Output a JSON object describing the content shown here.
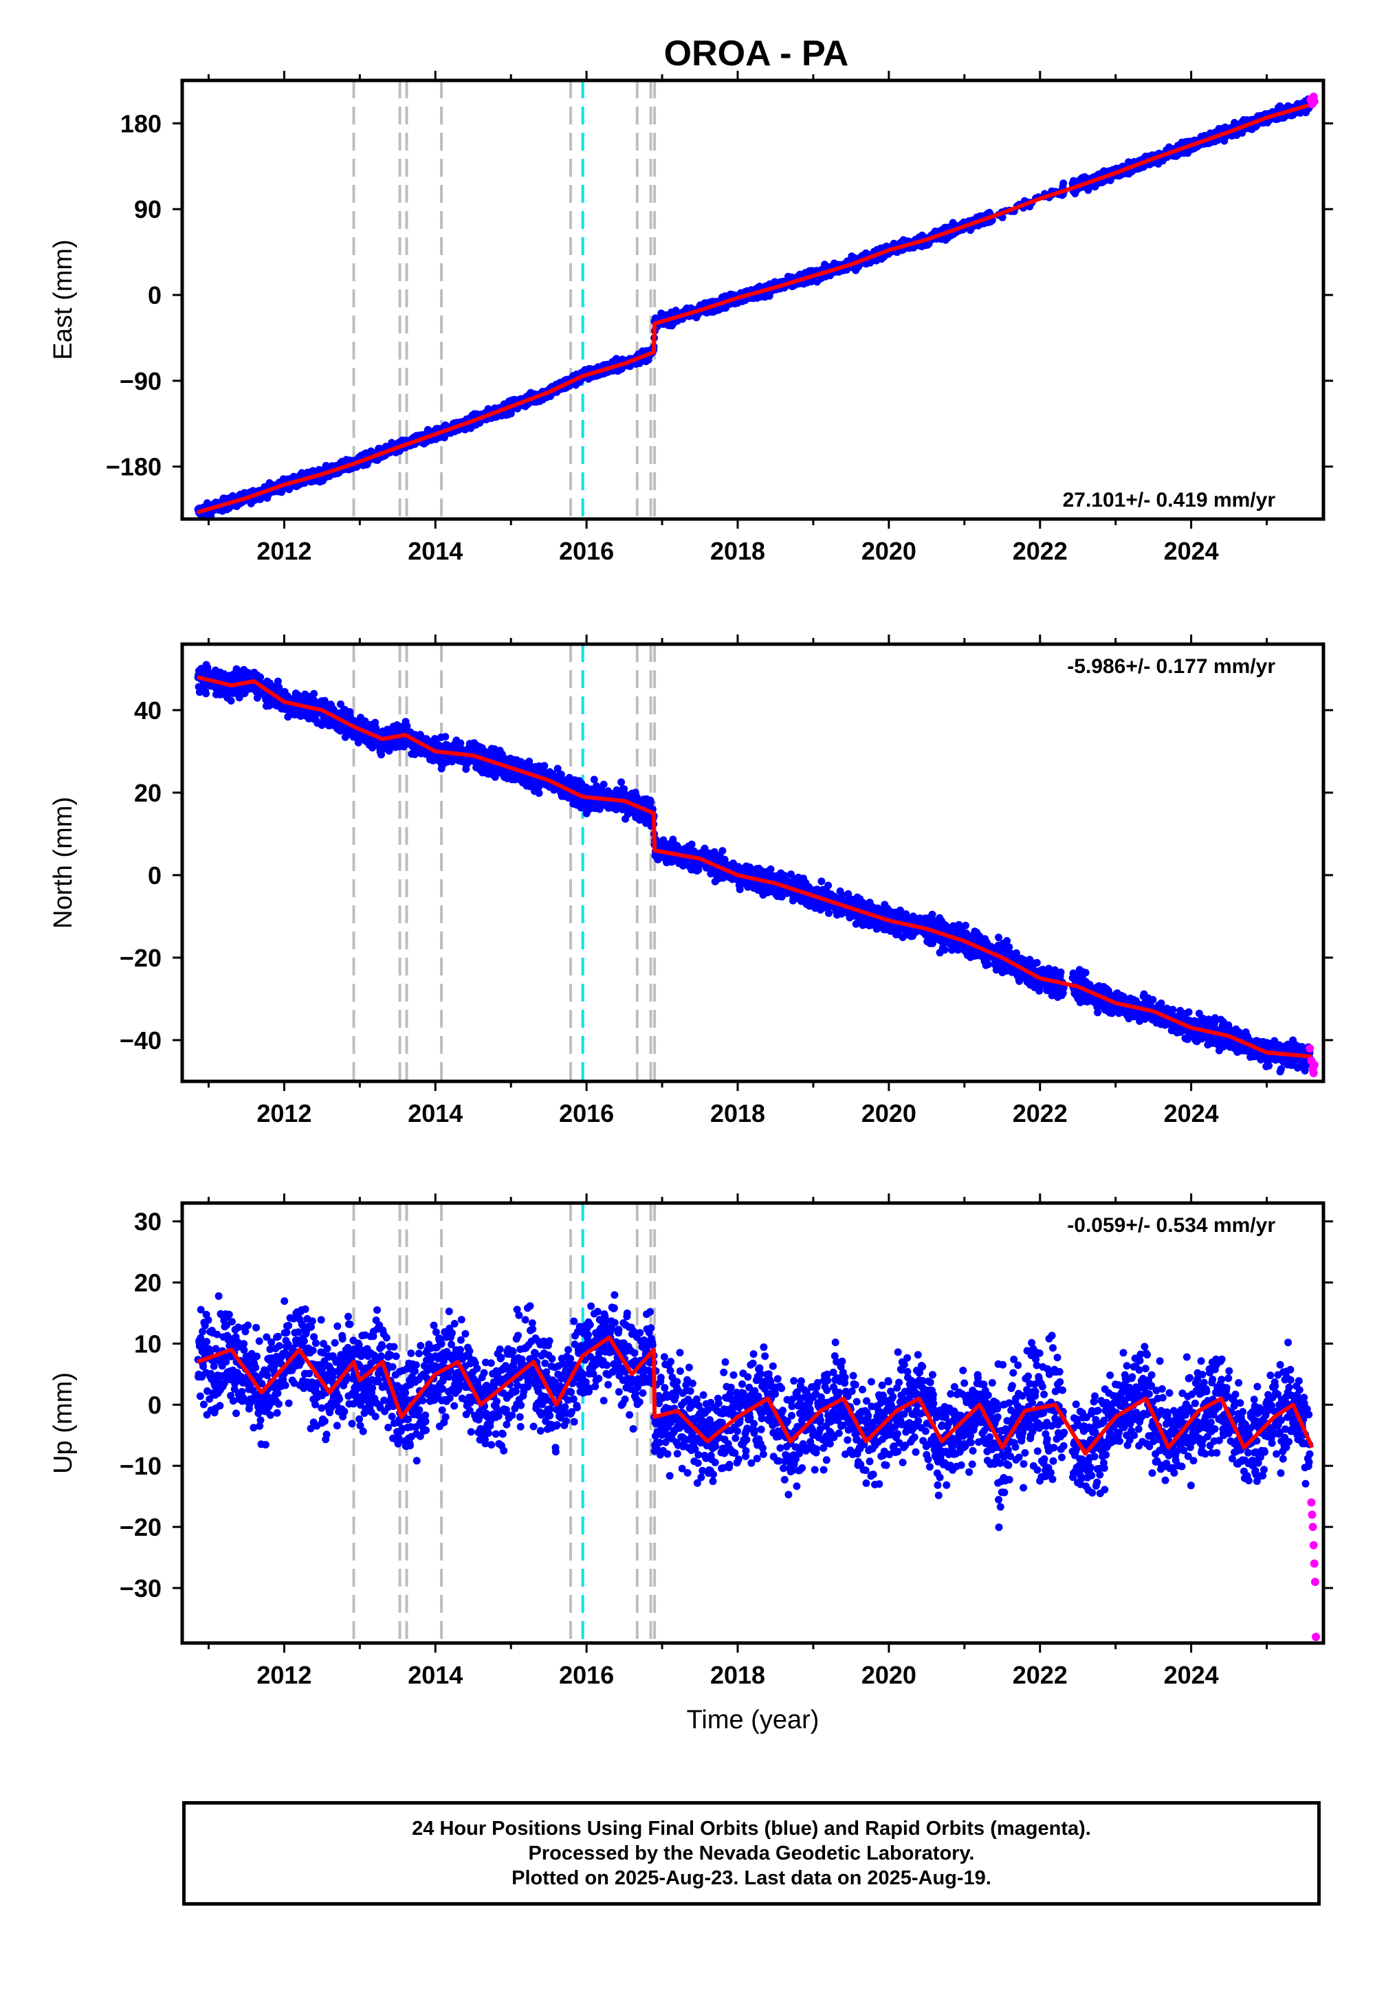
{
  "title": "OROA - PA",
  "x_axis": {
    "label": "Time (year)",
    "ticks": [
      "2012",
      "2014",
      "2016",
      "2018",
      "2020",
      "2022",
      "2024"
    ],
    "tick_values": [
      2012,
      2014,
      2016,
      2018,
      2020,
      2022,
      2024
    ],
    "range": [
      2010.65,
      2025.75
    ]
  },
  "colors": {
    "final_orbits": "#0000ff",
    "rapid_orbits": "#ff00ff",
    "model": "#ff0000",
    "event_gray": "#bebebe",
    "event_cyan": "#00e5ee"
  },
  "event_lines": {
    "gray": [
      2012.92,
      2013.53,
      2013.62,
      2014.08,
      2015.79,
      2016.67,
      2016.85,
      2016.9
    ],
    "cyan": [
      2015.95
    ]
  },
  "footer": {
    "line1": "24 Hour Positions Using Final Orbits (blue) and Rapid Orbits (magenta).",
    "line2": "Processed by the Nevada Geodetic Laboratory.",
    "line3": "Plotted on 2025-Aug-23. Last data on 2025-Aug-19."
  },
  "chart_data": [
    {
      "type": "scatter",
      "component": "east",
      "ylabel": "East (mm)",
      "rate": "27.101+/- 0.419 mm/yr",
      "ylim": [
        -235,
        225
      ],
      "yticks": [
        -180,
        -90,
        0,
        90,
        180
      ],
      "ytick_labels": [
        "−180",
        "−90",
        "0",
        "90",
        "180"
      ],
      "trend_mm_per_yr": 27.1,
      "scatter_mm": 3,
      "model_line": {
        "x": [
          2010.85,
          2011.5,
          2012.0,
          2012.5,
          2012.92,
          2013.5,
          2014.0,
          2014.5,
          2015.0,
          2015.5,
          2015.95,
          2016.5,
          2016.89,
          2016.9,
          2017.5,
          2018.0,
          2018.5,
          2019.0,
          2019.5,
          2020.0,
          2020.5,
          2021.0,
          2021.5,
          2022.0,
          2022.5,
          2023.0,
          2023.5,
          2024.0,
          2024.5,
          2025.0,
          2025.6
        ],
        "y": [
          -228,
          -213,
          -199,
          -188,
          -177,
          -160,
          -146,
          -132,
          -117,
          -102,
          -85,
          -72,
          -60,
          -30,
          -16,
          -3,
          8,
          20,
          32,
          47,
          58,
          72,
          86,
          101,
          114,
          128,
          143,
          157,
          171,
          186,
          200
        ]
      },
      "rapid": {
        "x": [
          2025.58,
          2025.6,
          2025.62,
          2025.63
        ],
        "y": [
          205,
          200,
          208,
          203
        ]
      }
    },
    {
      "type": "scatter",
      "component": "north",
      "ylabel": "North (mm)",
      "rate": "-5.986+/- 0.177 mm/yr",
      "ylim": [
        -50,
        56
      ],
      "yticks": [
        -40,
        -20,
        0,
        20,
        40
      ],
      "ytick_labels": [
        "−40",
        "−20",
        "0",
        "20",
        "40"
      ],
      "trend_mm_per_yr": -5.99,
      "scatter_mm": 1.6,
      "model_line": {
        "x": [
          2010.85,
          2011.3,
          2011.6,
          2012.0,
          2012.5,
          2012.92,
          2013.3,
          2013.6,
          2014.0,
          2014.5,
          2015.0,
          2015.5,
          2015.95,
          2016.5,
          2016.89,
          2016.9,
          2017.5,
          2018.0,
          2018.5,
          2019.0,
          2019.5,
          2020.0,
          2020.5,
          2021.0,
          2021.5,
          2022.0,
          2022.5,
          2023.0,
          2023.5,
          2024.0,
          2024.5,
          2025.0,
          2025.6
        ],
        "y": [
          48,
          46,
          47,
          42,
          40,
          36,
          33,
          34,
          30,
          29,
          26,
          23,
          19,
          18,
          15,
          6,
          4,
          0,
          -2,
          -5,
          -8,
          -11,
          -13,
          -16,
          -20,
          -25,
          -27,
          -31,
          -33,
          -37,
          -39,
          -43,
          -44
        ]
      },
      "rapid": {
        "x": [
          2025.57,
          2025.59,
          2025.61,
          2025.62,
          2025.63
        ],
        "y": [
          -42,
          -45,
          -47,
          -48,
          -46
        ]
      }
    },
    {
      "type": "scatter",
      "component": "up",
      "ylabel": "Up (mm)",
      "rate": "-0.059+/- 0.534 mm/yr",
      "ylim": [
        -39,
        33
      ],
      "yticks": [
        -30,
        -20,
        -10,
        0,
        10,
        20,
        30
      ],
      "ytick_labels": [
        "−30",
        "−20",
        "−10",
        "0",
        "10",
        "20",
        "30"
      ],
      "trend_mm_per_yr": -0.06,
      "scatter_mm": 4,
      "model_line": {
        "x": [
          2010.85,
          2011.3,
          2011.7,
          2012.2,
          2012.6,
          2012.92,
          2013.0,
          2013.3,
          2013.55,
          2014.0,
          2014.3,
          2014.6,
          2015.0,
          2015.3,
          2015.6,
          2015.95,
          2016.3,
          2016.6,
          2016.89,
          2016.9,
          2017.2,
          2017.6,
          2018.0,
          2018.4,
          2018.7,
          2019.1,
          2019.4,
          2019.7,
          2020.1,
          2020.4,
          2020.7,
          2021.2,
          2021.5,
          2021.8,
          2022.2,
          2022.6,
          2023.0,
          2023.4,
          2023.7,
          2024.1,
          2024.4,
          2024.7,
          2025.1,
          2025.35,
          2025.6
        ],
        "y": [
          7,
          9,
          2,
          9,
          2,
          7,
          4,
          7,
          -2,
          5,
          7,
          0,
          4,
          7,
          0,
          8,
          11,
          5,
          9,
          -2,
          -1,
          -6,
          -2,
          1,
          -6,
          -1,
          1,
          -6,
          -1,
          1,
          -6,
          0,
          -7,
          -1,
          0,
          -8,
          -2,
          1,
          -7,
          -1,
          1,
          -7,
          -2,
          0,
          -7
        ]
      },
      "rapid": {
        "x": [
          2025.59,
          2025.6,
          2025.61,
          2025.62,
          2025.63,
          2025.64,
          2025.65
        ],
        "y": [
          -16,
          -18,
          -20,
          -23,
          -26,
          -29,
          -38
        ]
      }
    }
  ]
}
